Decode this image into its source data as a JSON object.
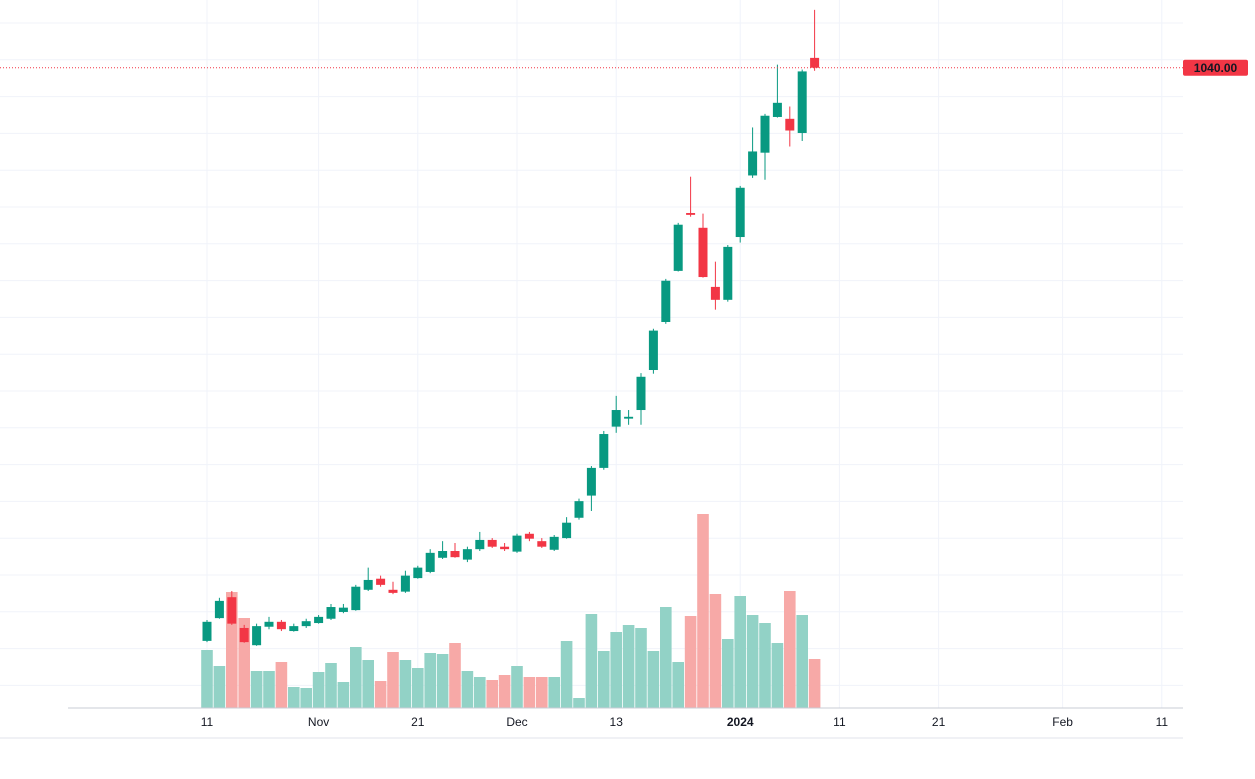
{
  "chart_data": {
    "type": "candlestick",
    "ylim": [
      0,
      1150
    ],
    "vlim": [
      0,
      400
    ],
    "up_color": "#089981",
    "down_color": "#f23645",
    "volume_up_color": "#92d2c6",
    "volume_down_color": "#f7a9a7",
    "last_price": {
      "value": 1040,
      "label": "1040.00"
    },
    "xtick_labels": [
      "11",
      "Nov",
      "21",
      "Dec",
      "13",
      "2024",
      "11",
      "21",
      "Feb",
      "11"
    ],
    "open": [
      109,
      146,
      180,
      130,
      102,
      132,
      140,
      125,
      133,
      138,
      145,
      156,
      159,
      192,
      210,
      192,
      189,
      211,
      221,
      244,
      255,
      241,
      258,
      273,
      262,
      254,
      283,
      271,
      257,
      276,
      309,
      345,
      390,
      457,
      470,
      484,
      549,
      627,
      710,
      804,
      780,
      684,
      663,
      765,
      865,
      902,
      960,
      957,
      934,
      1056
    ],
    "high": [
      143,
      179,
      190,
      135,
      137,
      148,
      143,
      137,
      145,
      151,
      169,
      169,
      200,
      228,
      215,
      205,
      223,
      231,
      258,
      271,
      268,
      262,
      286,
      276,
      268,
      283,
      286,
      276,
      281,
      310,
      340,
      393,
      450,
      507,
      484,
      544,
      616,
      697,
      788,
      863,
      803,
      725,
      752,
      848,
      943,
      965,
      1045,
      977,
      1037,
      1134
    ],
    "low": [
      107,
      145,
      135,
      106,
      101,
      128,
      125,
      124,
      130,
      137,
      143,
      154,
      158,
      190,
      197,
      185,
      187,
      210,
      219,
      242,
      244,
      237,
      255,
      260,
      255,
      252,
      271,
      260,
      255,
      275,
      306,
      320,
      387,
      447,
      460,
      460,
      543,
      624,
      709,
      798,
      699,
      647,
      660,
      756,
      861,
      858,
      959,
      912,
      921,
      1035
    ],
    "close": [
      140,
      174,
      137,
      107,
      133,
      140,
      128,
      133,
      141,
      148,
      164,
      163,
      197,
      208,
      200,
      187,
      215,
      228,
      252,
      255,
      245,
      258,
      273,
      262,
      258,
      280,
      275,
      262,
      278,
      301,
      336,
      390,
      445,
      484,
      473,
      538,
      613,
      694,
      785,
      801,
      700,
      663,
      749,
      845,
      904,
      962,
      983,
      938,
      1034,
      1040
    ],
    "volume": [
      58,
      42,
      116,
      90,
      37,
      37,
      46,
      21,
      20,
      36,
      45,
      26,
      61,
      48,
      27,
      56,
      48,
      40,
      55,
      54,
      65,
      37,
      31,
      28,
      33,
      42,
      31,
      31,
      31,
      67,
      10,
      94,
      57,
      76,
      83,
      80,
      57,
      101,
      46,
      92,
      194,
      114,
      69,
      112,
      93,
      85,
      65,
      117,
      93,
      49
    ]
  }
}
